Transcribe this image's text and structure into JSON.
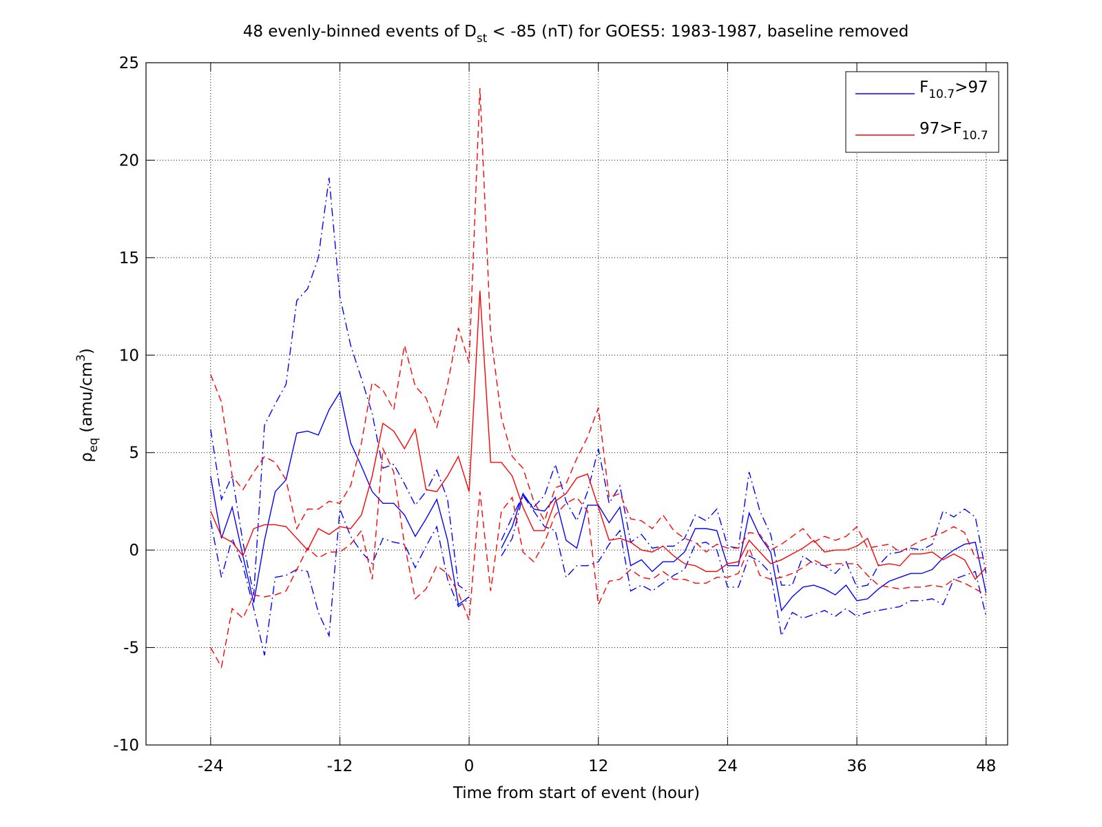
{
  "chart_data": {
    "type": "line",
    "title": [
      {
        "text": "48 evenly-binned events of D"
      },
      {
        "text": "st",
        "script": "sub"
      },
      {
        "text": " < -85 (nT) for GOES5: 1983-1987, baseline removed"
      }
    ],
    "x_label": [
      {
        "text": "Time from start of event (hour)"
      }
    ],
    "y_label": [
      {
        "text": "ρ"
      },
      {
        "text": "eq",
        "script": "sub"
      },
      {
        "text": " (amu/cm"
      },
      {
        "text": "3",
        "script": "sup"
      },
      {
        "text": ")"
      }
    ],
    "x": [
      -24,
      -23,
      -22,
      -21,
      -20,
      -19,
      -18,
      -17,
      -16,
      -15,
      -14,
      -13,
      -12,
      -11,
      -10,
      -9,
      -8,
      -7,
      -6,
      -5,
      -4,
      -3,
      -2,
      -1,
      0,
      1,
      2,
      3,
      4,
      5,
      6,
      7,
      8,
      9,
      10,
      11,
      12,
      13,
      14,
      15,
      16,
      17,
      18,
      19,
      20,
      21,
      22,
      23,
      24,
      25,
      26,
      27,
      28,
      29,
      30,
      31,
      32,
      33,
      34,
      35,
      36,
      37,
      38,
      39,
      40,
      41,
      42,
      43,
      44,
      45,
      46,
      47,
      48
    ],
    "xlim": [
      -30,
      50
    ],
    "xticks": [
      -24,
      -12,
      0,
      12,
      24,
      36,
      48
    ],
    "ylim": [
      -10,
      25
    ],
    "yticks": [
      -10,
      -5,
      0,
      5,
      10,
      15,
      20,
      25
    ],
    "grid": true,
    "legend": "upper right",
    "series": [
      {
        "name": [
          {
            "text": "F"
          },
          {
            "text": "10.7",
            "script": "sub"
          },
          {
            "text": ">97"
          }
        ],
        "color": "#0000ff",
        "line_style": "solid",
        "values": [
          3.8,
          0.6,
          2.2,
          -0.3,
          -2.7,
          0.5,
          3.0,
          3.6,
          6.0,
          6.1,
          5.9,
          7.2,
          8.1,
          5.5,
          4.3,
          3.0,
          2.4,
          2.4,
          1.8,
          0.7,
          1.6,
          2.6,
          0.5,
          -2.8,
          -2.4,
          null,
          null,
          0.1,
          1.2,
          2.9,
          2.1,
          2.0,
          2.7,
          0.5,
          0.1,
          2.3,
          2.3,
          1.4,
          2.2,
          -0.8,
          -0.5,
          -1.1,
          -0.6,
          -0.6,
          -0.1,
          1.1,
          1.1,
          1.0,
          -0.8,
          -0.8,
          1.9,
          0.7,
          -0.1,
          -3.1,
          -2.4,
          -1.9,
          -1.8,
          -2.0,
          -2.3,
          -1.8,
          -2.6,
          -2.5,
          -2.0,
          -1.6,
          -1.4,
          -1.2,
          -1.2,
          -1.0,
          -0.4,
          0.0,
          0.3,
          0.4,
          -2.2
        ]
      },
      {
        "color": "#0000ff",
        "line_style": "dashdot",
        "values": [
          6.2,
          2.6,
          3.8,
          0.4,
          -2.3,
          6.4,
          7.5,
          8.5,
          12.8,
          13.4,
          15.0,
          19.1,
          13.0,
          10.5,
          8.8,
          7.0,
          4.2,
          4.4,
          3.4,
          2.3,
          3.0,
          4.1,
          2.6,
          -1.8,
          -2.2,
          null,
          null,
          0.5,
          1.7,
          2.8,
          2.2,
          2.8,
          4.4,
          2.5,
          1.5,
          3.0,
          5.2,
          2.4,
          3.3,
          0.4,
          0.8,
          0.1,
          0.2,
          0.2,
          0.6,
          1.8,
          1.5,
          2.1,
          0.2,
          0.1,
          4.0,
          2.0,
          0.8,
          -1.8,
          -1.8,
          -0.3,
          -0.7,
          -0.8,
          -1.2,
          -0.6,
          -1.9,
          -1.8,
          -0.8,
          -0.2,
          -0.1,
          0.1,
          0.0,
          0.3,
          2.0,
          1.7,
          2.1,
          1.7,
          -1.2
        ]
      },
      {
        "color": "#0000ff",
        "line_style": "dashdot",
        "values": [
          1.5,
          -1.4,
          0.6,
          -0.8,
          -3.0,
          -5.4,
          -1.4,
          -1.3,
          -1.0,
          -1.1,
          -3.2,
          -4.4,
          2.1,
          0.7,
          -0.1,
          -0.7,
          0.6,
          0.4,
          0.3,
          -0.9,
          0.2,
          1.2,
          -1.5,
          -2.9,
          -2.5,
          null,
          null,
          -0.3,
          0.6,
          2.8,
          2.0,
          1.2,
          1.0,
          -1.4,
          -0.8,
          -0.8,
          -0.6,
          0.3,
          1.0,
          -2.1,
          -1.8,
          -2.1,
          -1.7,
          -1.3,
          -1.0,
          0.3,
          0.4,
          0.0,
          -1.9,
          -1.9,
          -0.3,
          -0.6,
          -1.2,
          -4.4,
          -3.2,
          -3.5,
          -3.3,
          -3.1,
          -3.4,
          -3.0,
          -3.4,
          -3.2,
          -3.1,
          -3.0,
          -2.9,
          -2.6,
          -2.6,
          -2.5,
          -2.8,
          -1.5,
          -1.3,
          -1.1,
          -3.4
        ]
      },
      {
        "name": [
          {
            "text": "97>F"
          },
          {
            "text": "10.7",
            "script": "sub"
          }
        ],
        "color": "#ff0000",
        "line_style": "solid",
        "values": [
          2.0,
          0.7,
          0.4,
          -0.3,
          1.1,
          1.3,
          1.3,
          1.2,
          0.6,
          0.0,
          1.1,
          0.8,
          1.2,
          1.1,
          1.8,
          3.8,
          6.5,
          6.1,
          5.2,
          6.2,
          3.1,
          3.0,
          3.8,
          4.8,
          3.0,
          13.3,
          4.5,
          4.5,
          3.8,
          2.2,
          1.0,
          1.0,
          2.5,
          2.9,
          3.7,
          3.9,
          2.2,
          0.5,
          0.6,
          0.4,
          0.0,
          -0.1,
          0.2,
          -0.3,
          -0.7,
          -0.8,
          -1.1,
          -1.1,
          -0.7,
          -0.6,
          0.5,
          -0.1,
          -0.7,
          -0.5,
          -0.2,
          0.1,
          0.5,
          -0.1,
          0.0,
          0.0,
          0.2,
          0.6,
          -0.8,
          -0.7,
          -0.8,
          -0.2,
          -0.2,
          -0.1,
          -0.5,
          -0.2,
          -0.5,
          -1.5,
          -0.9
        ]
      },
      {
        "color": "#ff0000",
        "line_style": "dashed",
        "values": [
          9.0,
          7.6,
          3.8,
          3.1,
          4.0,
          4.8,
          4.5,
          3.6,
          1.1,
          2.1,
          2.1,
          2.5,
          2.4,
          3.3,
          5.5,
          8.6,
          8.2,
          7.2,
          10.5,
          8.4,
          7.8,
          6.3,
          8.5,
          11.4,
          9.6,
          23.7,
          11.1,
          6.8,
          4.8,
          4.2,
          2.5,
          1.5,
          3.2,
          3.4,
          4.7,
          5.8,
          7.3,
          2.7,
          2.9,
          1.6,
          1.5,
          1.1,
          1.8,
          1.0,
          0.6,
          0.4,
          -0.1,
          0.3,
          0.1,
          0.1,
          0.9,
          0.8,
          0.0,
          0.3,
          0.7,
          1.1,
          0.4,
          0.7,
          0.5,
          0.7,
          1.2,
          0.1,
          0.2,
          0.3,
          -0.1,
          0.2,
          0.5,
          0.7,
          0.9,
          1.2,
          0.9,
          -0.4,
          -0.4
        ]
      },
      {
        "color": "#ff0000",
        "line_style": "dashed",
        "values": [
          -5.0,
          -6.0,
          -3.0,
          -3.5,
          -2.3,
          -2.4,
          -2.3,
          -2.1,
          -1.0,
          0.1,
          -0.4,
          -0.1,
          -0.1,
          0.3,
          1.0,
          -1.5,
          5.2,
          4.0,
          0.3,
          -2.5,
          -2.0,
          -0.8,
          -1.2,
          -2.2,
          -3.6,
          3.0,
          -2.1,
          2.0,
          2.7,
          -0.1,
          -0.6,
          0.4,
          1.8,
          2.4,
          2.7,
          2.0,
          -2.8,
          -1.6,
          -1.5,
          -1.0,
          -1.4,
          -1.5,
          -1.1,
          -1.5,
          -1.5,
          -1.7,
          -1.7,
          -1.4,
          -1.4,
          -1.2,
          0.1,
          -1.3,
          -1.5,
          -1.4,
          -1.2,
          -0.9,
          -0.5,
          -0.8,
          -0.7,
          -0.7,
          -0.7,
          -1.3,
          -1.8,
          -1.9,
          -2.0,
          -1.9,
          -1.9,
          -1.8,
          -1.9,
          -1.5,
          -1.7,
          -2.0,
          -2.3
        ]
      }
    ]
  }
}
